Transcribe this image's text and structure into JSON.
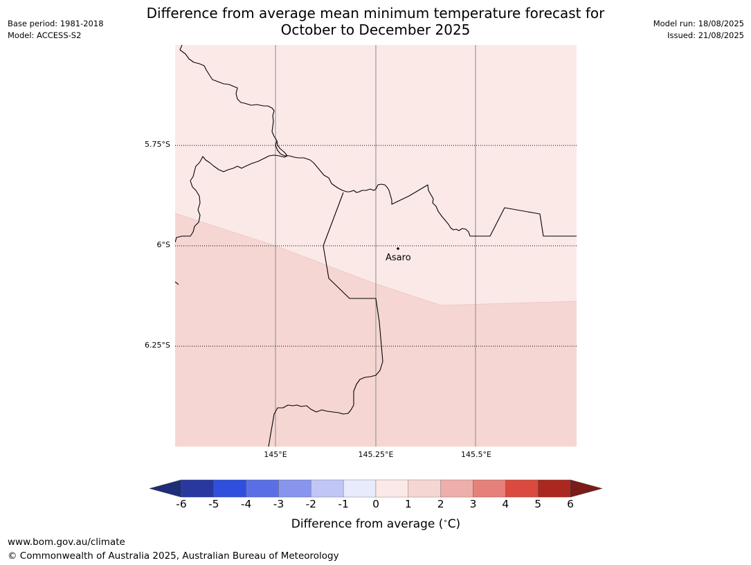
{
  "title_line1": "Difference from average mean minimum temperature forecast for",
  "title_line2": "October to December 2025",
  "meta_left": [
    "Base period: 1981-2018",
    "Model: ACCESS-S2"
  ],
  "meta_right": [
    "Model run: 18/08/2025",
    "Issued: 21/08/2025"
  ],
  "map": {
    "lat_labels": [
      "5.75°S",
      "6°S",
      "6.25°S"
    ],
    "lon_labels": [
      "145°E",
      "145.25°E",
      "145.5°E"
    ],
    "place": {
      "name": "Asaro",
      "lat": -6.01,
      "lon": 145.3
    },
    "anomaly_regions": [
      {
        "range": "0 to 1",
        "color": "#fbe9e8"
      },
      {
        "range": "1 to 2",
        "color": "#f5d6d3"
      }
    ]
  },
  "colorbar": {
    "ticks": [
      "-6",
      "-5",
      "-4",
      "-3",
      "-2",
      "-1",
      "0",
      "1",
      "2",
      "3",
      "4",
      "5",
      "6"
    ],
    "colors": [
      "#28389f",
      "#2f4fdc",
      "#5a6fe6",
      "#8795ee",
      "#c0c6f5",
      "#e8ebfc",
      "#fbe9e8",
      "#f5d6d3",
      "#eeaea9",
      "#e6807a",
      "#da4a3e",
      "#aa2820"
    ],
    "under_color": "#1e2d78",
    "over_color": "#7a1c18",
    "label": "Difference from average ($^\\circ$C)",
    "label_text": "Difference from average (",
    "label_unit": "C)"
  },
  "footer": {
    "url": "www.bom.gov.au/climate",
    "copyright": "© Commonwealth of Australia 2025, Australian Bureau of Meteorology"
  }
}
